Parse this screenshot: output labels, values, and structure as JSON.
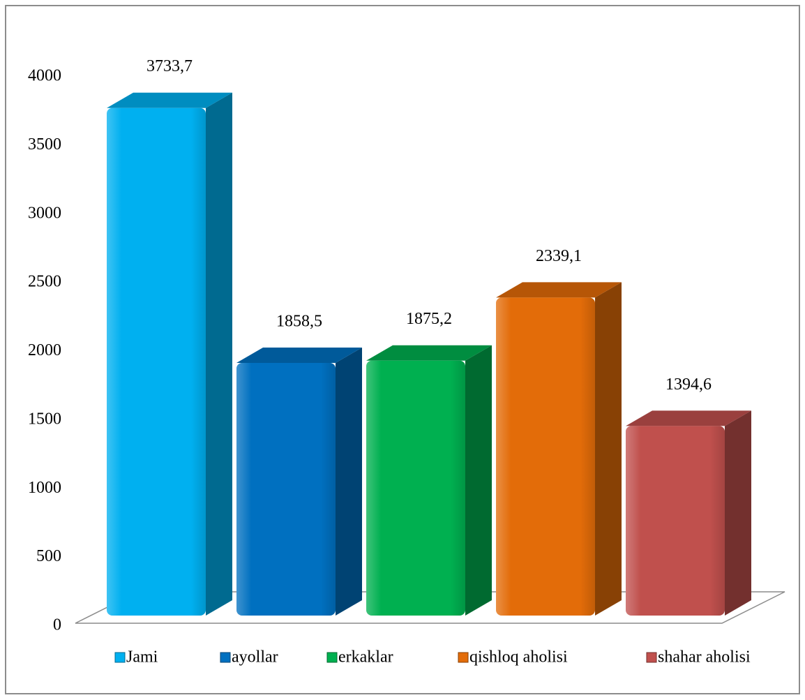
{
  "chart_data": {
    "type": "bar",
    "series": [
      {
        "name": "Jami",
        "color": "#00b0f0",
        "values": [
          3733.7
        ],
        "value_labels": [
          "3733,7"
        ]
      },
      {
        "name": "ayollar",
        "color": "#0070c0",
        "values": [
          1858.5
        ],
        "value_labels": [
          "1858,5"
        ]
      },
      {
        "name": "erkaklar",
        "color": "#00b050",
        "values": [
          1875.2
        ],
        "value_labels": [
          "1875,2"
        ]
      },
      {
        "name": "qishloq aholisi",
        "color": "#e36c09",
        "values": [
          2339.1
        ],
        "value_labels": [
          "2339,1"
        ]
      },
      {
        "name": "shahar aholisi",
        "color": "#c0504d",
        "values": [
          1394.6
        ],
        "value_labels": [
          "1394,6"
        ]
      }
    ],
    "ylim": [
      0,
      4000
    ],
    "yticks": [
      0,
      500,
      1000,
      1500,
      2000,
      2500,
      3000,
      3500,
      4000
    ]
  }
}
